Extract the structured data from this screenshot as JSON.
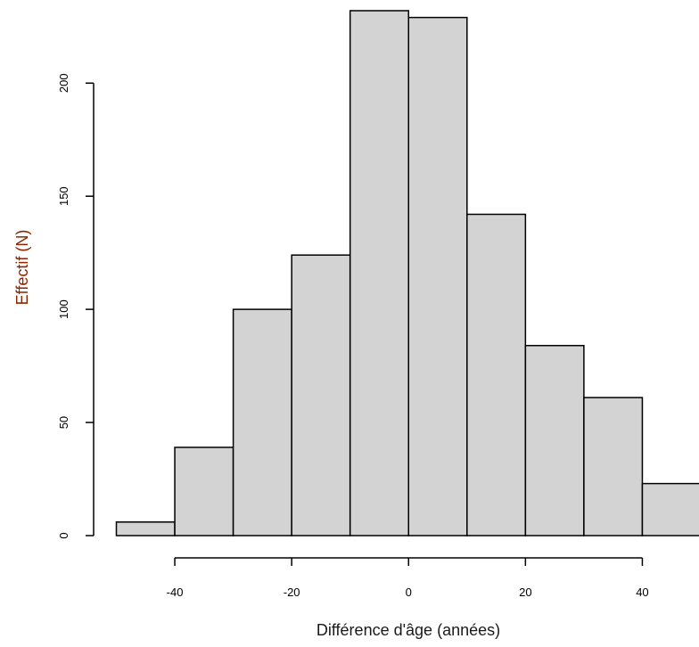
{
  "colors": {
    "bar_fill": "#d3d3d3",
    "bar_stroke": "#000000",
    "axis": "#000000",
    "xlabel_color": "#1a1a1a",
    "ylabel_color": "#8b2500"
  },
  "chart_data": {
    "type": "bar",
    "histogram": true,
    "bin_edges": [
      -50,
      -40,
      -30,
      -20,
      -10,
      0,
      10,
      20,
      30,
      40,
      50
    ],
    "values": [
      6,
      39,
      100,
      124,
      232,
      229,
      142,
      84,
      61,
      23
    ],
    "xlabel": "Différence d'âge (années)",
    "ylabel": "Effectif (N)",
    "xlim": [
      -50,
      50
    ],
    "ylim": [
      0,
      232
    ],
    "x_ticks": [
      -40,
      -20,
      0,
      20,
      40
    ],
    "x_tick_labels": [
      "-40",
      "-20",
      "0",
      "20",
      "40"
    ],
    "y_ticks": [
      0,
      50,
      100,
      150,
      200
    ],
    "y_tick_labels": [
      "0",
      "50",
      "100",
      "150",
      "200"
    ],
    "grid": false,
    "legend": "none"
  }
}
